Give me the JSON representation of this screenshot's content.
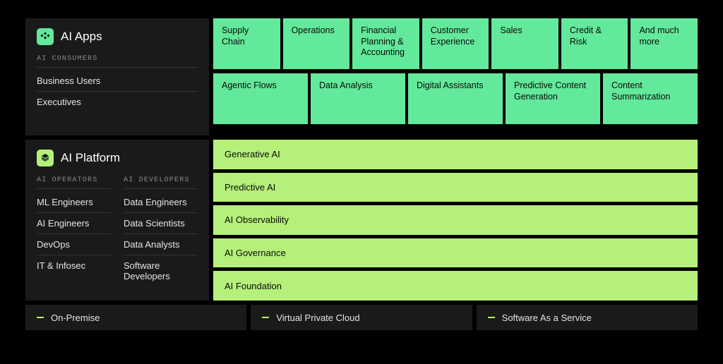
{
  "colors": {
    "bg": "#000000",
    "panel": "#1a1a1a",
    "text_primary": "#ffffff",
    "text_secondary": "#e5e5e5",
    "text_muted": "#8a8a8a",
    "divider": "#333333",
    "green_bright": "#63e99b",
    "green_lime": "#b5f07a",
    "icon_dark": "#0a1a0f"
  },
  "ai_apps": {
    "title": "AI Apps",
    "icon_bg": "#63e99b",
    "subhead": "AI CONSUMERS",
    "consumers": [
      "Business Users",
      "Executives"
    ],
    "row1": [
      "Supply Chain",
      "Operations",
      "Financial Planning & Accounting",
      "Customer Experience",
      "Sales",
      "Credit & Risk",
      "And much more"
    ],
    "row2": [
      "Agentic Flows",
      "Data Analysis",
      "Digital Assistants",
      "Predictive Content Generation",
      "Content Summarization"
    ],
    "box_color": "#63e99b"
  },
  "ai_platform": {
    "title": "AI Platform",
    "icon_bg": "#b5f07a",
    "col1_head": "AI OPERATORS",
    "col2_head": "AI DEVELOPERS",
    "col1": [
      "ML Engineers",
      "AI Engineers",
      "DevOps",
      "IT & Infosec"
    ],
    "col2": [
      "Data Engineers",
      "Data Scientists",
      "Data Analysts",
      "Software Developers"
    ],
    "layers": [
      "Generative AI",
      "Predictive AI",
      "AI Observability",
      "AI Governance",
      "AI Foundation"
    ],
    "bar_color": "#b5f07a"
  },
  "footer": {
    "items": [
      "On-Premise",
      "Virtual Private Cloud",
      "Software As a Service"
    ],
    "dash_color": "#b5f07a"
  }
}
